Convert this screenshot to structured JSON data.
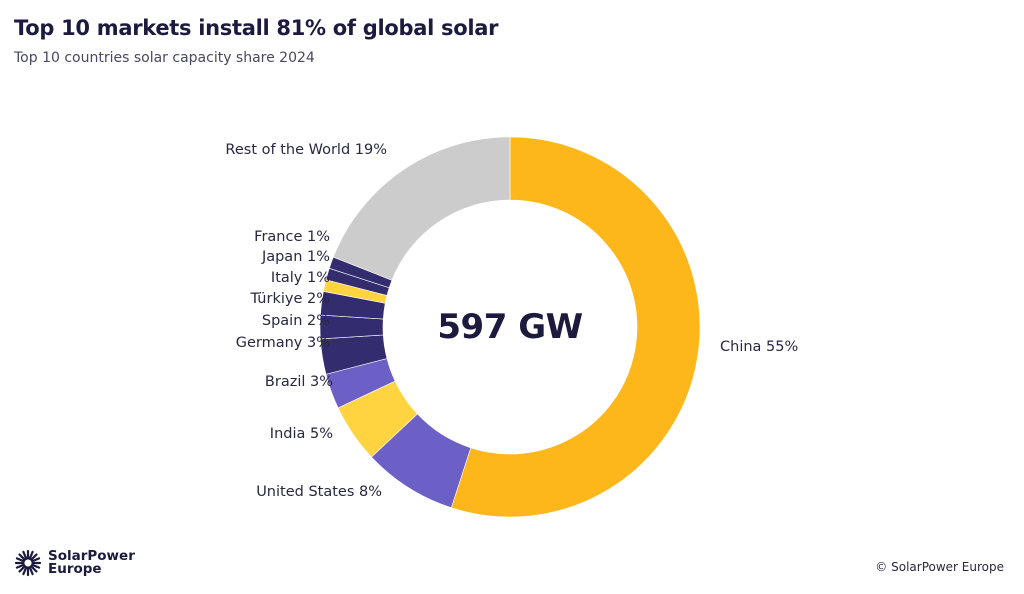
{
  "chart_data": {
    "type": "pie",
    "donut": true,
    "title": "Top 10 markets install 81% of global solar",
    "subtitle": "Top 10 countries solar capacity share 2024",
    "center_label": "597 GW",
    "categories": [
      "China",
      "United States",
      "India",
      "Brazil",
      "Germany",
      "Spain",
      "Türkiye",
      "Italy",
      "Japan",
      "France",
      "Rest of the World"
    ],
    "values": [
      55,
      8,
      5,
      3,
      3,
      2,
      2,
      1,
      1,
      1,
      19
    ],
    "labels": [
      "China 55%",
      "United States 8%",
      "India 5%",
      "Brazil 3%",
      "Germany 3%",
      "Spain 2%",
      "Türkiye 2%",
      "Italy 1%",
      "Japan 1%",
      "France 1%",
      "Rest of the World 19%"
    ],
    "colors": [
      "#FDB71B",
      "#6C5FC6",
      "#FFD440",
      "#6C5FC6",
      "#332C6E",
      "#332C6E",
      "#332C6E",
      "#FFD440",
      "#332C6E",
      "#332C6E",
      "#CCCCCC"
    ],
    "start": "12 o'clock, clockwise"
  },
  "footer": {
    "logo_line1": "SolarPower",
    "logo_line2": "Europe",
    "copyright": "© SolarPower Europe"
  }
}
